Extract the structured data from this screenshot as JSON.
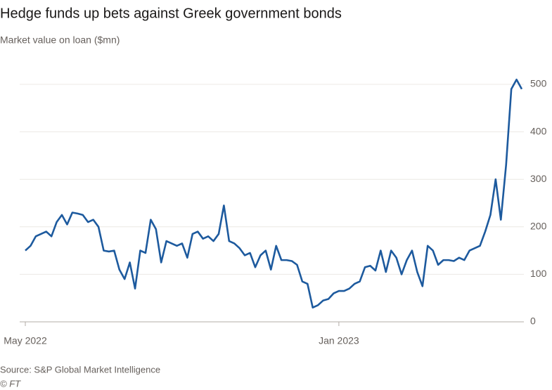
{
  "chart_data": {
    "type": "line",
    "title": "Hedge funds up bets against Greek government bonds",
    "subtitle": "Market value on loan ($mn)",
    "source": "Source: S&P Global Market Intelligence",
    "credit": "© FT",
    "categories": [
      "May 2022",
      null,
      null,
      null,
      null,
      null,
      null,
      null,
      null,
      null,
      null,
      null,
      null,
      null,
      null,
      null,
      null,
      null,
      null,
      null,
      null,
      null,
      null,
      null,
      null,
      null,
      null,
      null,
      null,
      null,
      null,
      null,
      null,
      null,
      null,
      null,
      null,
      null,
      null,
      null,
      null,
      null,
      null,
      null,
      null,
      null,
      null,
      null,
      null,
      null,
      null,
      null,
      null,
      null,
      null,
      null,
      null,
      null,
      null,
      null,
      "Jan 2023",
      null,
      null,
      null,
      null,
      null,
      null,
      null,
      null,
      null,
      null,
      null,
      null,
      null,
      null,
      null,
      null,
      null,
      null,
      null,
      null,
      null,
      null,
      null,
      null,
      null,
      null,
      null,
      null,
      null,
      null,
      null,
      null,
      null,
      null,
      null
    ],
    "series": [
      {
        "name": "Market value on loan",
        "color": "#1d5a9e",
        "values": [
          150,
          160,
          180,
          185,
          190,
          180,
          210,
          225,
          205,
          230,
          228,
          225,
          210,
          215,
          200,
          150,
          148,
          150,
          110,
          90,
          125,
          70,
          150,
          145,
          215,
          195,
          125,
          170,
          165,
          160,
          165,
          135,
          185,
          190,
          175,
          180,
          170,
          185,
          245,
          170,
          165,
          155,
          140,
          145,
          115,
          140,
          150,
          110,
          160,
          130,
          130,
          128,
          120,
          85,
          80,
          30,
          35,
          45,
          48,
          60,
          65,
          65,
          70,
          80,
          85,
          115,
          118,
          108,
          150,
          105,
          150,
          135,
          100,
          130,
          150,
          105,
          75,
          160,
          150,
          120,
          130,
          130,
          128,
          135,
          130,
          150,
          155,
          160,
          190,
          225,
          300,
          215,
          330,
          490,
          510,
          490
        ]
      }
    ],
    "ylim": [
      0,
      500
    ],
    "yticks": [
      0,
      100,
      200,
      300,
      400,
      500
    ],
    "grid": true
  }
}
